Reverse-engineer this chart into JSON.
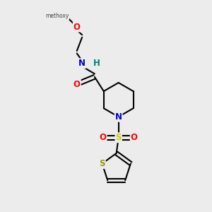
{
  "bg_color": "#ececec",
  "bond_color": "#000000",
  "bond_width": 1.5,
  "atom_colors": {
    "C": "#000000",
    "N": "#0000cc",
    "O": "#ff0000",
    "S_sulfonyl": "#cccc00",
    "S_thio": "#999900",
    "H": "#008080"
  },
  "font_size": 8.5,
  "figsize": [
    3.0,
    3.0
  ],
  "dpi": 100,
  "xlim": [
    0,
    10
  ],
  "ylim": [
    0,
    10
  ]
}
